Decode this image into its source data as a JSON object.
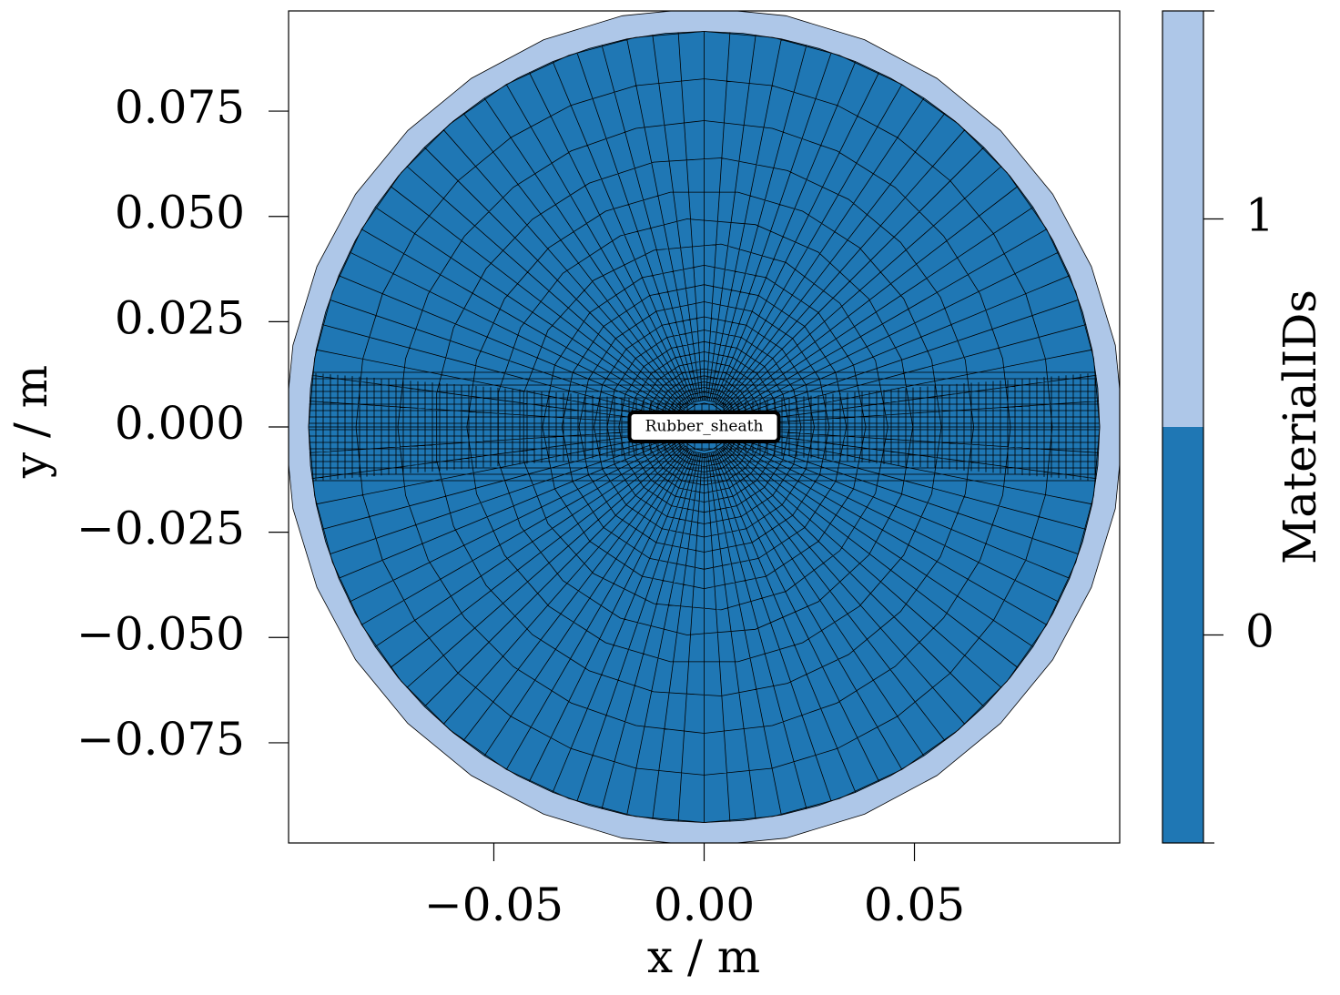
{
  "chart_data": {
    "type": "mesh",
    "xlabel": "x / m",
    "ylabel": "y / m",
    "xlim": [
      -0.0988,
      0.0988
    ],
    "ylim": [
      -0.0988,
      0.0988
    ],
    "xticks": [
      {
        "value": -0.05,
        "label": "−0.05"
      },
      {
        "value": 0,
        "label": "0.00"
      },
      0.05
    ],
    "yticks": [
      {
        "value": -0.075,
        "label": "−0.075"
      },
      {
        "value": -0.05,
        "label": "−0.050"
      },
      {
        "value": -0.025,
        "label": "−0.025"
      },
      {
        "value": 0,
        "label": "0.000"
      },
      {
        "value": 0.025,
        "label": "0.025"
      },
      {
        "value": 0.05,
        "label": "0.050"
      },
      {
        "value": 0.075,
        "label": "0.075"
      }
    ],
    "annotation": {
      "text": "Rubber_sheath",
      "x": 0,
      "y": 0
    },
    "colorbar": {
      "label": "MaterialIDs",
      "lim": [
        -0.5,
        1.5
      ],
      "ticks": [
        0,
        1
      ],
      "colors": [
        "#1f77b4",
        "#aec7e8"
      ]
    }
  }
}
